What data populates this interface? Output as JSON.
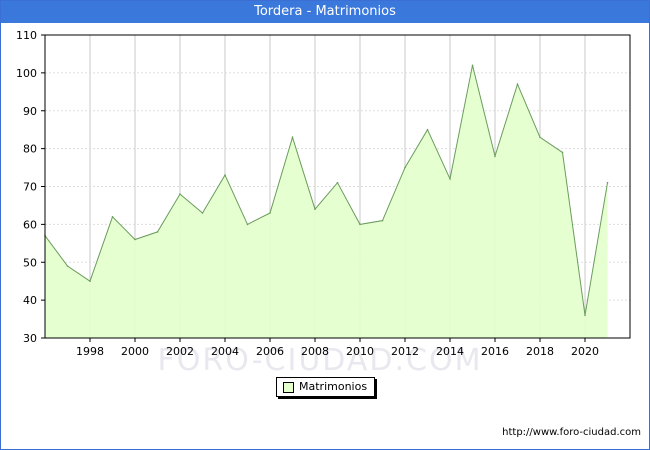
{
  "window": {
    "title": "Tordera - Matrimonios"
  },
  "footer": {
    "url": "http://www.foro-ciudad.com"
  },
  "watermark": {
    "text": "FORO-CIUDAD.COM"
  },
  "colors": {
    "title_bar": "#3b78dc",
    "area_fill": "#e4ffcc",
    "line": "#6a9c5c",
    "grid": "#c8c8c8"
  },
  "chart_data": {
    "type": "area",
    "title": "Tordera - Matrimonios",
    "xlabel": "",
    "ylabel": "",
    "x": [
      1996,
      1997,
      1998,
      1999,
      2000,
      2001,
      2002,
      2003,
      2004,
      2005,
      2006,
      2007,
      2008,
      2009,
      2010,
      2011,
      2012,
      2013,
      2014,
      2015,
      2016,
      2017,
      2018,
      2019,
      2020,
      2021
    ],
    "series": [
      {
        "name": "Matrimonios",
        "values": [
          57,
          49,
          45,
          62,
          56,
          58,
          68,
          63,
          73,
          60,
          63,
          83,
          64,
          71,
          60,
          61,
          75,
          85,
          72,
          102,
          78,
          97,
          83,
          79,
          36,
          71
        ]
      }
    ],
    "xlim": [
      1996,
      2022
    ],
    "ylim": [
      30,
      110
    ],
    "x_ticks": [
      "1998",
      "2000",
      "2002",
      "2004",
      "2006",
      "2008",
      "2010",
      "2012",
      "2014",
      "2016",
      "2018",
      "2020"
    ],
    "y_ticks": [
      "30",
      "40",
      "50",
      "60",
      "70",
      "80",
      "90",
      "100",
      "110"
    ],
    "grid": true,
    "legend_position": "bottom-center"
  }
}
